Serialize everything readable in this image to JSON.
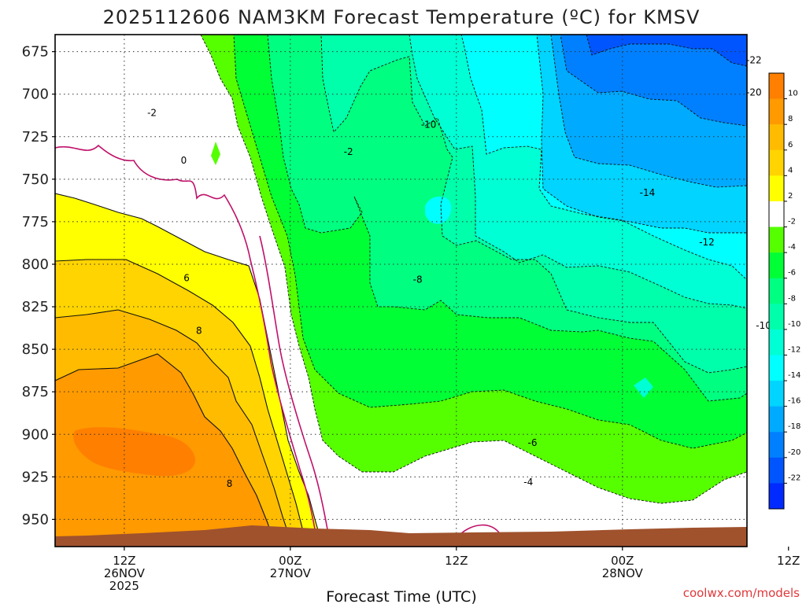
{
  "chart_data": {
    "type": "contour",
    "title": "2025112606 NAM3KM Forecast Temperature (ºC) for KMSV",
    "xlabel": "Forecast Time (UTC)",
    "ylabel": "",
    "credit": "coolwx.com/models",
    "x_range_hours": [
      7,
      57
    ],
    "y_range_hpa": [
      665,
      966
    ],
    "y_ticks": [
      {
        "value": 675,
        "label": "675"
      },
      {
        "value": 700,
        "label": "700"
      },
      {
        "value": 725,
        "label": "725"
      },
      {
        "value": 750,
        "label": "750"
      },
      {
        "value": 775,
        "label": "775"
      },
      {
        "value": 800,
        "label": "800"
      },
      {
        "value": 825,
        "label": "825"
      },
      {
        "value": 850,
        "label": "850"
      },
      {
        "value": 875,
        "label": "875"
      },
      {
        "value": 900,
        "label": "900"
      },
      {
        "value": 925,
        "label": "925"
      },
      {
        "value": 950,
        "label": "950"
      }
    ],
    "x_ticks": [
      {
        "hour": 12,
        "lines": [
          "12Z",
          "26NOV",
          "2025"
        ]
      },
      {
        "hour": 24,
        "lines": [
          "00Z",
          "27NOV"
        ]
      },
      {
        "hour": 36,
        "lines": [
          "12Z"
        ]
      },
      {
        "hour": 48,
        "lines": [
          "00Z",
          "28NOV"
        ]
      },
      {
        "hour": 60,
        "lines": [
          "12Z"
        ]
      }
    ],
    "colorbar": {
      "levels": [
        {
          "from": 10,
          "to": 12,
          "color": "#ff7f00"
        },
        {
          "from": 8,
          "to": 10,
          "color": "#ff9a00"
        },
        {
          "from": 6,
          "to": 8,
          "color": "#ffbb00"
        },
        {
          "from": 4,
          "to": 6,
          "color": "#ffd400"
        },
        {
          "from": 2,
          "to": 4,
          "color": "#ffff00"
        },
        {
          "from": -2,
          "to": 2,
          "color": "#ffffff"
        },
        {
          "from": -4,
          "to": -2,
          "color": "#55ff00"
        },
        {
          "from": -6,
          "to": -4,
          "color": "#00ff35"
        },
        {
          "from": -8,
          "to": -6,
          "color": "#00ff80"
        },
        {
          "from": -10,
          "to": -8,
          "color": "#00ffaa"
        },
        {
          "from": -12,
          "to": -10,
          "color": "#00ffd4"
        },
        {
          "from": -14,
          "to": -12,
          "color": "#00ffff"
        },
        {
          "from": -16,
          "to": -14,
          "color": "#00d4ff"
        },
        {
          "from": -18,
          "to": -16,
          "color": "#00aaff"
        },
        {
          "from": -20,
          "to": -18,
          "color": "#0080ff"
        },
        {
          "from": -22,
          "to": -20,
          "color": "#0055ff"
        },
        {
          "from": -24,
          "to": -22,
          "color": "#002aff"
        }
      ],
      "tick_labels": [
        "10",
        "8",
        "6",
        "4",
        "2",
        "-2",
        "-4",
        "-6",
        "-8",
        "-10",
        "-12",
        "-14",
        "-16",
        "-18",
        "-20",
        "-22"
      ]
    },
    "contour_labels": [
      {
        "text": "-22",
        "hour": 57.5,
        "hpa": 680
      },
      {
        "text": "-20",
        "hour": 57.5,
        "hpa": 699
      },
      {
        "text": "-2",
        "hour": 14.0,
        "hpa": 711
      },
      {
        "text": "-10",
        "hour": 34.0,
        "hpa": 718
      },
      {
        "text": "-2",
        "hour": 28.2,
        "hpa": 734
      },
      {
        "text": "0",
        "hour": 16.3,
        "hpa": 739
      },
      {
        "text": "-14",
        "hour": 49.8,
        "hpa": 758
      },
      {
        "text": "-12",
        "hour": 54.1,
        "hpa": 787
      },
      {
        "text": "6",
        "hour": 16.5,
        "hpa": 808
      },
      {
        "text": "-8",
        "hour": 33.2,
        "hpa": 809
      },
      {
        "text": "-10",
        "hour": 58.2,
        "hpa": 836
      },
      {
        "text": "8",
        "hour": 17.4,
        "hpa": 839
      },
      {
        "text": "-6",
        "hour": 41.5,
        "hpa": 905
      },
      {
        "text": "-4",
        "hour": 41.2,
        "hpa": 928
      },
      {
        "text": "8",
        "hour": 19.6,
        "hpa": 929
      }
    ],
    "bands_top_to_bottom": [
      {
        "color": "#0055ff",
        "boundary": "frame-top"
      },
      {
        "color": "#0080ff",
        "boundary": "-22"
      },
      {
        "color": "#00aaff",
        "boundary": "-20"
      },
      {
        "color": "#00d4ff",
        "boundary": "-18"
      },
      {
        "color": "#00ffff",
        "boundary": "-16"
      },
      {
        "color": "#00ffd4",
        "boundary": "-14"
      },
      {
        "color": "#00ffaa",
        "boundary": "-12"
      },
      {
        "color": "#00ff80",
        "boundary": "-10"
      },
      {
        "color": "#00ff35",
        "boundary": "-8"
      },
      {
        "color": "#55ff00",
        "boundary": "-6"
      },
      {
        "color": "#ffffff",
        "boundary": "-2"
      },
      {
        "color": "#ffff00",
        "boundary": "2"
      },
      {
        "color": "#ffd400",
        "boundary": "4"
      },
      {
        "color": "#ffbb00",
        "boundary": "6"
      },
      {
        "color": "#ff9a00",
        "boundary": "8"
      }
    ],
    "terrain_color": "#a0522d",
    "grid": "dotted"
  }
}
